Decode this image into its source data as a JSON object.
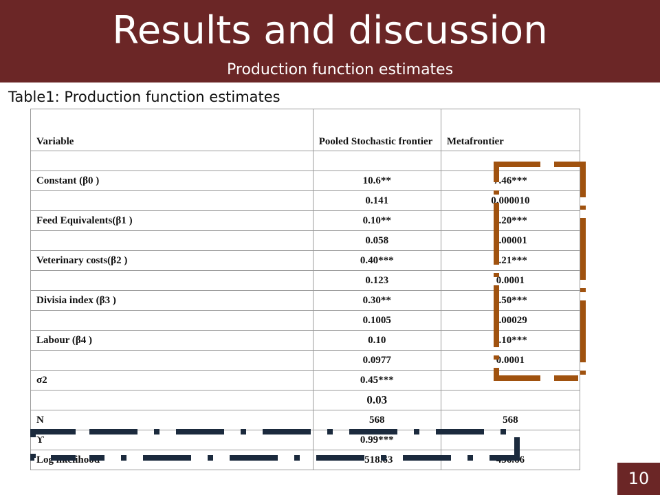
{
  "slide": {
    "title": "Results and discussion",
    "subtitle": "Production function estimates",
    "page_number": "10",
    "header_color": "#6b2626"
  },
  "table": {
    "caption": "Table1: Production function estimates",
    "headers": [
      "Variable",
      "Pooled Stochastic frontier",
      "Metafrontier"
    ],
    "rows": [
      [
        "",
        "",
        ""
      ],
      [
        "Constant (β0 )",
        "10.6**",
        "7.46***"
      ],
      [
        "",
        "0.141",
        "0.000010"
      ],
      [
        "Feed Equivalents(β1 )",
        "0.10**",
        "0.20***"
      ],
      [
        "",
        "0.058",
        "0.00001"
      ],
      [
        "Veterinary costs(β2 )",
        "0.40***",
        "0.21***"
      ],
      [
        "",
        "0.123",
        "0.0001"
      ],
      [
        "Divisia index (β3 )",
        "0.30**",
        "0.50***"
      ],
      [
        "",
        "0.1005",
        "0.00029"
      ],
      [
        "Labour (β4 )",
        "0.10",
        "0.10***"
      ],
      [
        "",
        "0.0977",
        "0.0001"
      ],
      [
        "σ2",
        "0.45***",
        ""
      ],
      [
        "",
        "0.03",
        ""
      ],
      [
        "N",
        "568",
        "568"
      ],
      [
        "ϒ",
        "0.99***",
        ""
      ],
      [
        "Log likelihood",
        "-518.63",
        "456.66"
      ]
    ]
  },
  "annotations": {
    "vertical_bracket_color": "#a0520f",
    "horizontal_bracket_color": "#1b2a3d"
  }
}
